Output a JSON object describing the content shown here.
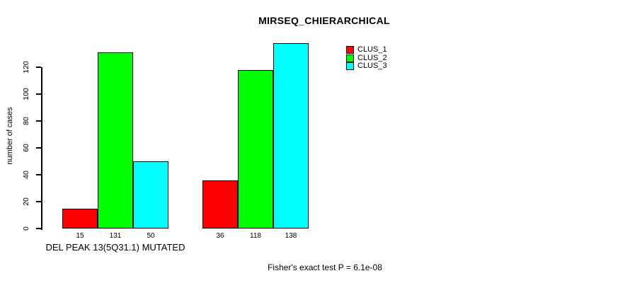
{
  "title": "MIRSEQ_CHIERARCHICAL",
  "ylabel": "number of cases",
  "group_label": "DEL PEAK 13(5Q31.1) MUTATED",
  "footnote": "Fisher's exact test P = 6.1e-08",
  "colors": {
    "clus_1": "#FF0000",
    "clus_2": "#00FF00",
    "clus_3": "#00FFFF",
    "axis": "#000000",
    "background": "#FFFFFF"
  },
  "legend": {
    "position": "top-right-inside",
    "items": [
      {
        "label": "CLUS_1",
        "color": "#FF0000"
      },
      {
        "label": "CLUS_2",
        "color": "#00FF00"
      },
      {
        "label": "CLUS_3",
        "color": "#00FFFF"
      }
    ]
  },
  "chart_data": {
    "type": "bar",
    "title": "MIRSEQ_CHIERARCHICAL",
    "ylabel": "number of cases",
    "xlabel": "",
    "categories": [
      "DEL PEAK 13(5Q31.1) MUTATED",
      ""
    ],
    "series": [
      {
        "name": "CLUS_1",
        "color": "#FF0000",
        "values": [
          15,
          36
        ]
      },
      {
        "name": "CLUS_2",
        "color": "#00FF00",
        "values": [
          131,
          118
        ]
      },
      {
        "name": "CLUS_3",
        "color": "#00FFFF",
        "values": [
          50,
          138
        ]
      }
    ],
    "bar_value_labels": [
      [
        15,
        131,
        50
      ],
      [
        36,
        118,
        138
      ]
    ],
    "yticks": [
      0,
      20,
      40,
      60,
      80,
      100,
      120
    ],
    "ylim": [
      0,
      140
    ],
    "grid": false,
    "legend_position": "top-right",
    "annotation": "Fisher's exact test P = 6.1e-08"
  }
}
